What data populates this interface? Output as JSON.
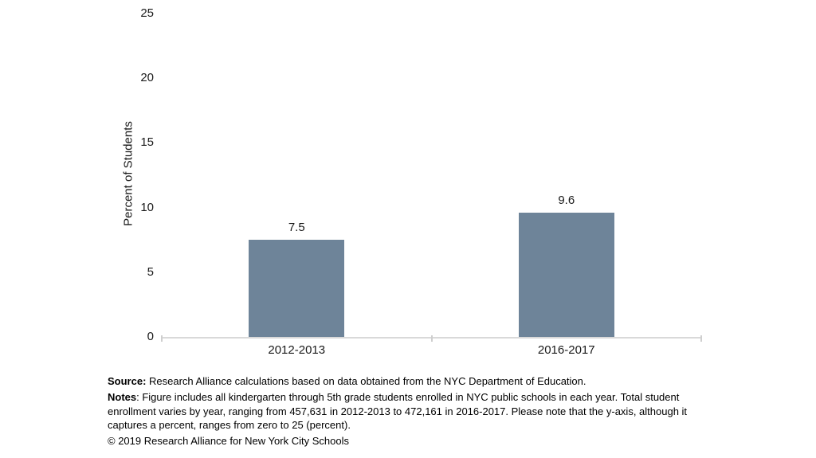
{
  "chart_data": {
    "type": "bar",
    "categories": [
      "2012-2013",
      "2016-2017"
    ],
    "values": [
      7.5,
      9.6
    ],
    "data_labels": [
      "7.5",
      "9.6"
    ],
    "title": "",
    "xlabel": "",
    "ylabel": "Percent of Students",
    "ylim": [
      0,
      25
    ],
    "yticks": [
      0,
      5,
      10,
      15,
      20,
      25
    ],
    "grid": false,
    "legend": false,
    "bar_color": "#6e8499",
    "axis_line_color": "#d9d9d9"
  },
  "footer": {
    "source_label": "Source:",
    "source_text": " Research Alliance calculations based on data obtained from the NYC Department of Education.",
    "notes_label": "Notes",
    "notes_text": ": Figure includes all kindergarten through 5th grade students enrolled in NYC public schools in each year. Total student enrollment varies by year, ranging from 457,631 in 2012-2013 to 472,161 in 2016-2017. Please note that the y-axis, although it captures a percent, ranges from zero to 25 (percent).",
    "copyright": "© 2019 Research Alliance for New York City Schools"
  }
}
